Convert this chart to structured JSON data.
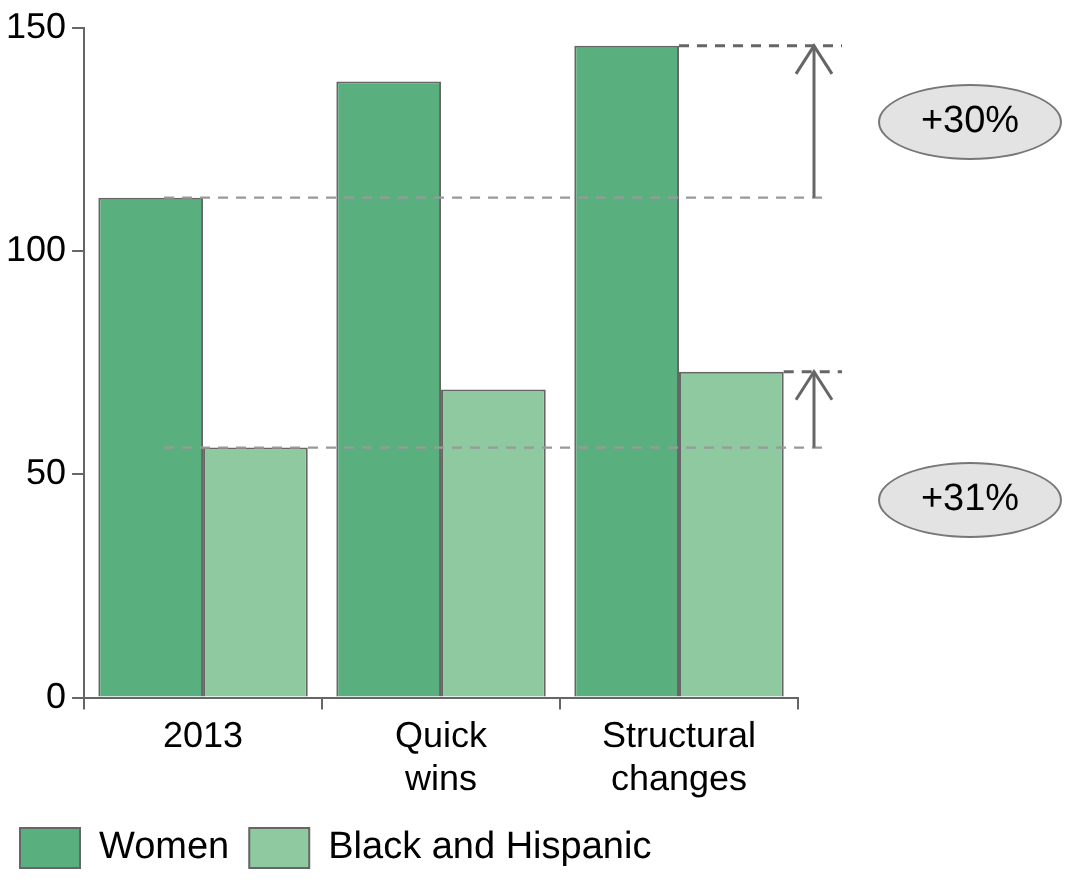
{
  "chart_data": {
    "type": "bar",
    "categories": [
      "2013",
      "Quick wins",
      "Structural changes"
    ],
    "series": [
      {
        "name": "Women",
        "color": "#5aaf7f",
        "values": [
          112,
          138,
          146
        ]
      },
      {
        "name": "Black and Hispanic",
        "color": "#8fc9a0",
        "values": [
          56,
          69,
          73
        ]
      }
    ],
    "ylim": [
      0,
      150
    ],
    "yticks": [
      0,
      50,
      100,
      150
    ],
    "grid": false,
    "legend": "bottom",
    "ref_lines": [
      {
        "axis": "y",
        "value": 112,
        "color": "#999999",
        "line_style": "dashed"
      },
      {
        "axis": "y",
        "value": 56,
        "color": "#999999",
        "line_style": "dashed"
      }
    ],
    "annotations": [
      "+30%",
      "+31%"
    ]
  }
}
